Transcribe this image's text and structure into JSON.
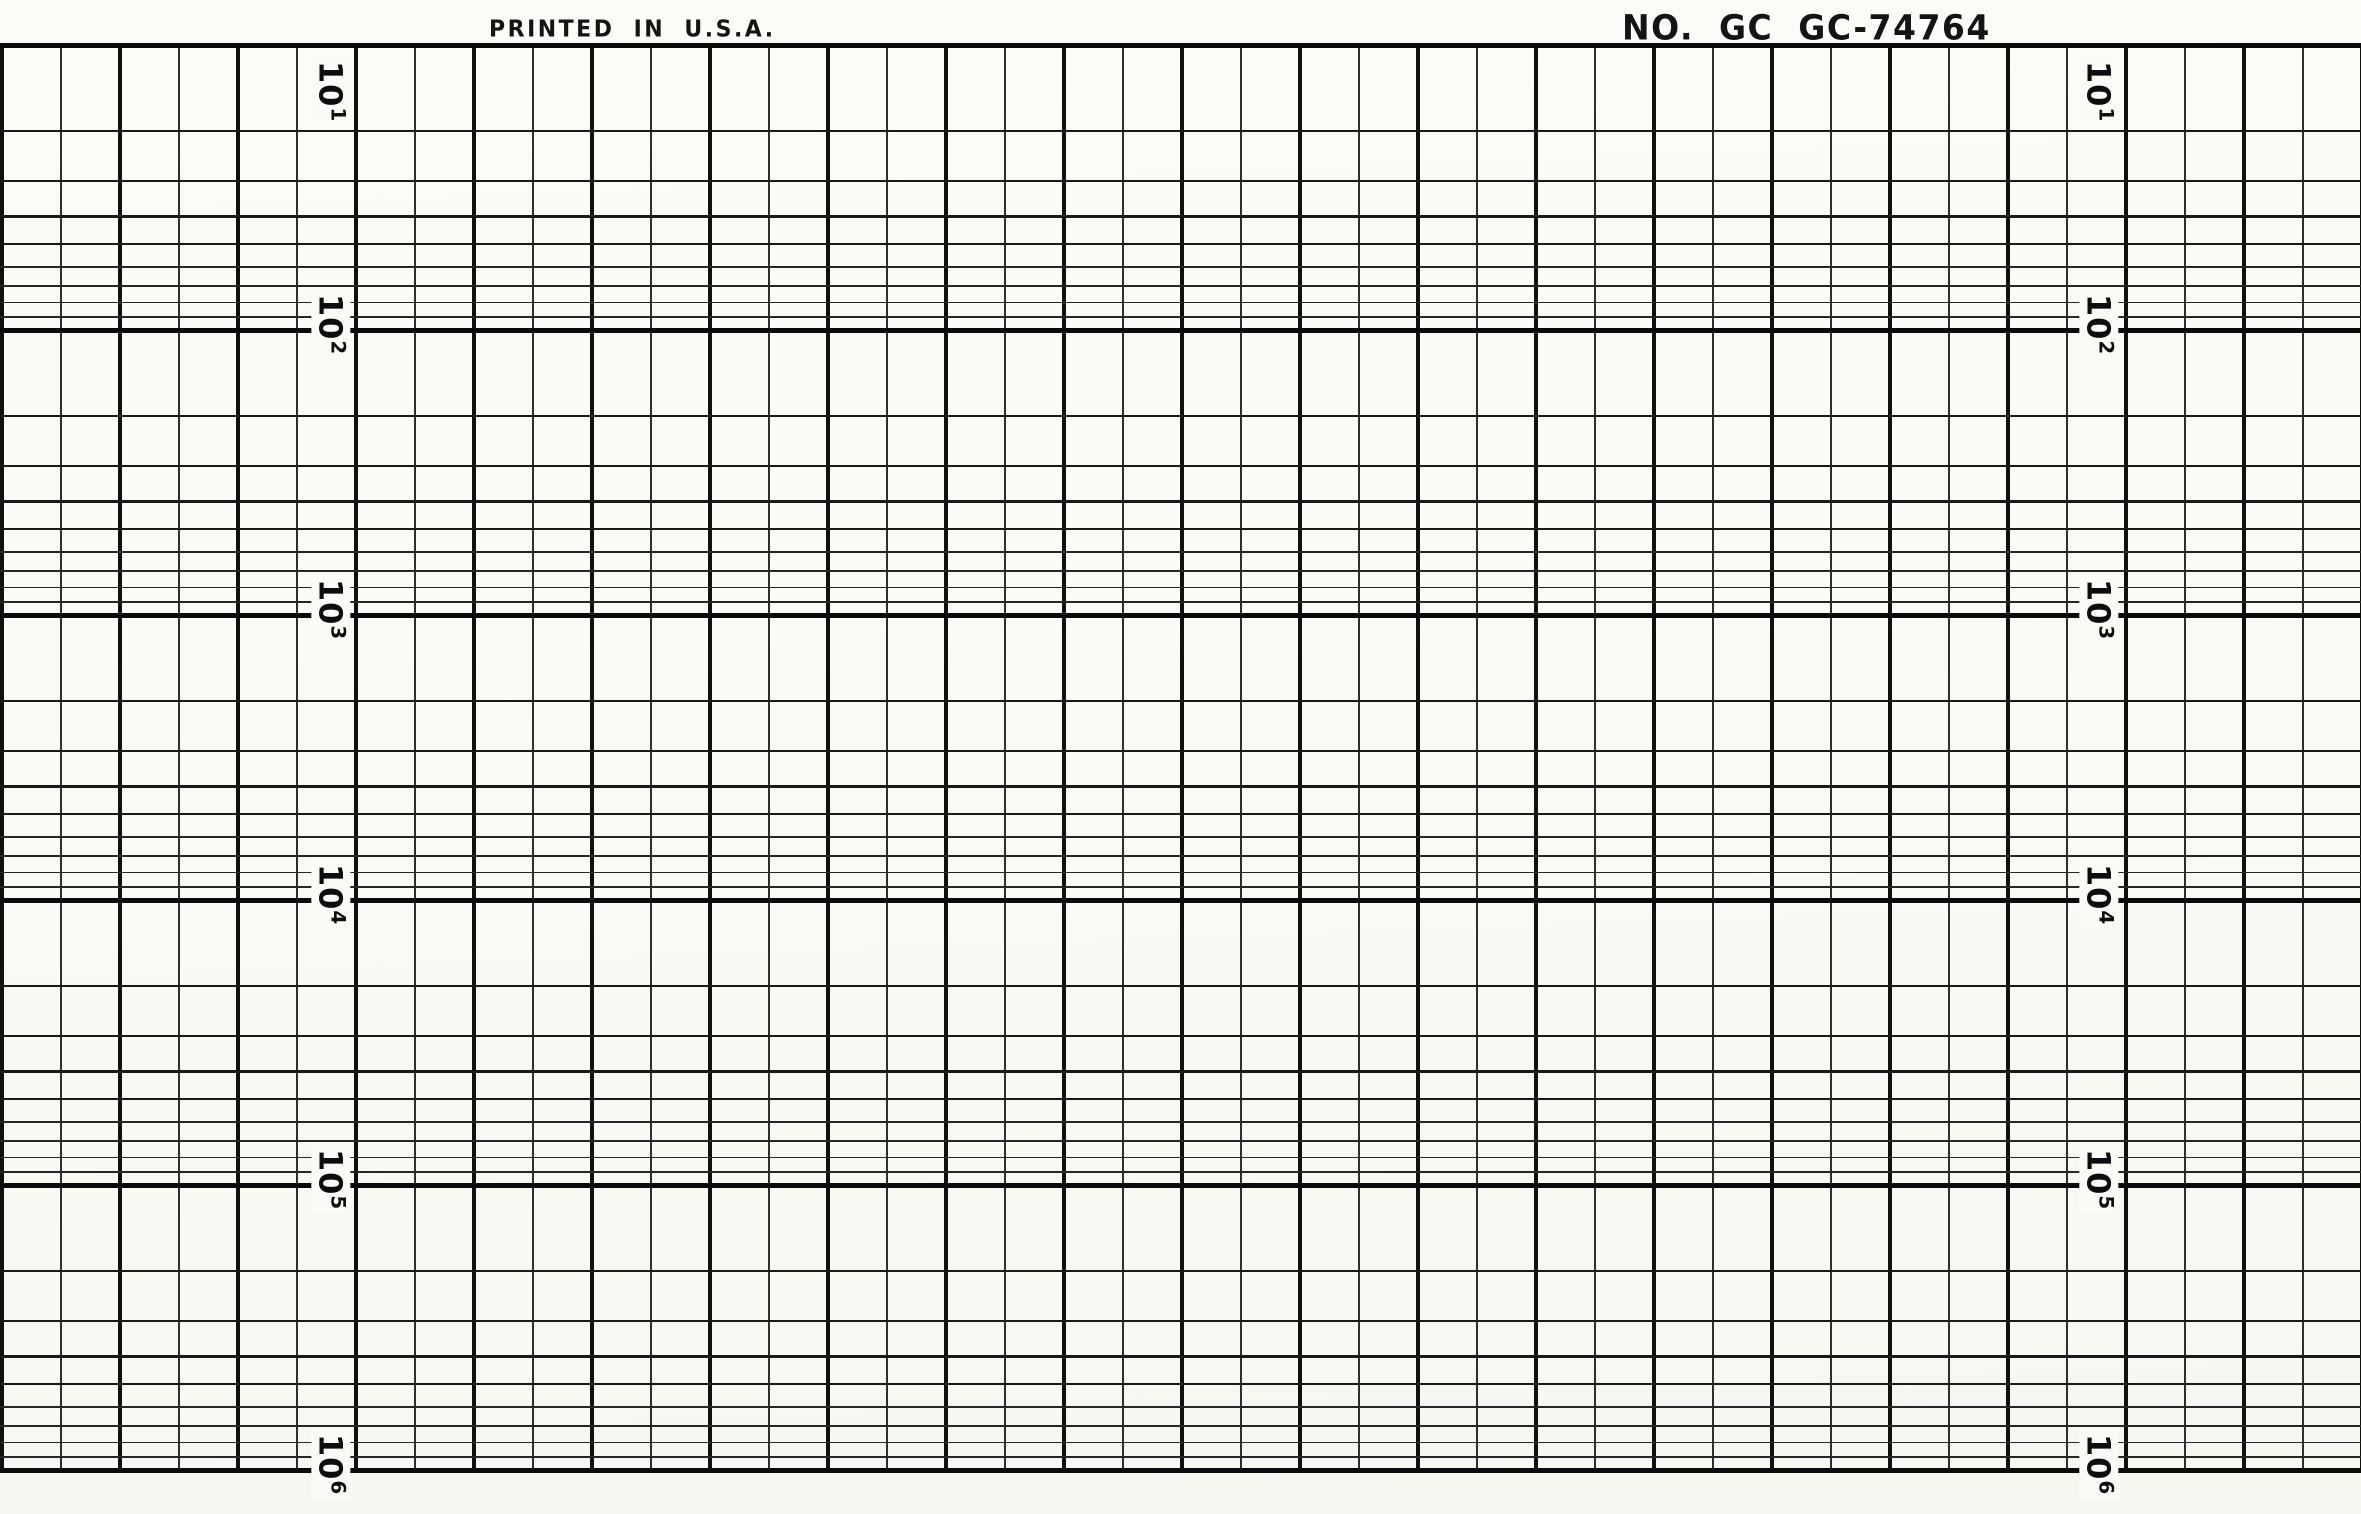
{
  "header": {
    "printed_in": "PRINTED IN U.S.A.",
    "part_number": "NO. GC GC-74764"
  },
  "chart_data": {
    "type": "line",
    "title": "",
    "series": [],
    "grid": true,
    "description": "Blank 5-cycle semi-logarithmic strip-chart recorder graph paper, no data plotted",
    "y_axis": {
      "scale": "logarithmic",
      "direction": "values-increase-downward",
      "decade_label_base": "10",
      "decade_exponents": [
        "1",
        "2",
        "3",
        "4",
        "5",
        "6"
      ],
      "decade_labels": [
        "10^1",
        "10^2",
        "10^3",
        "10^4",
        "10^5",
        "10^6"
      ],
      "minor_lines_per_decade": [
        2,
        3,
        4,
        5,
        6,
        7,
        8,
        9
      ],
      "label_columns": 2,
      "label_orientation": "rotated-90-clockwise"
    },
    "x_axis": {
      "scale": "linear",
      "minor_divisions": 40,
      "emphasis": "every-second-line-bold",
      "tick_labels": []
    }
  }
}
